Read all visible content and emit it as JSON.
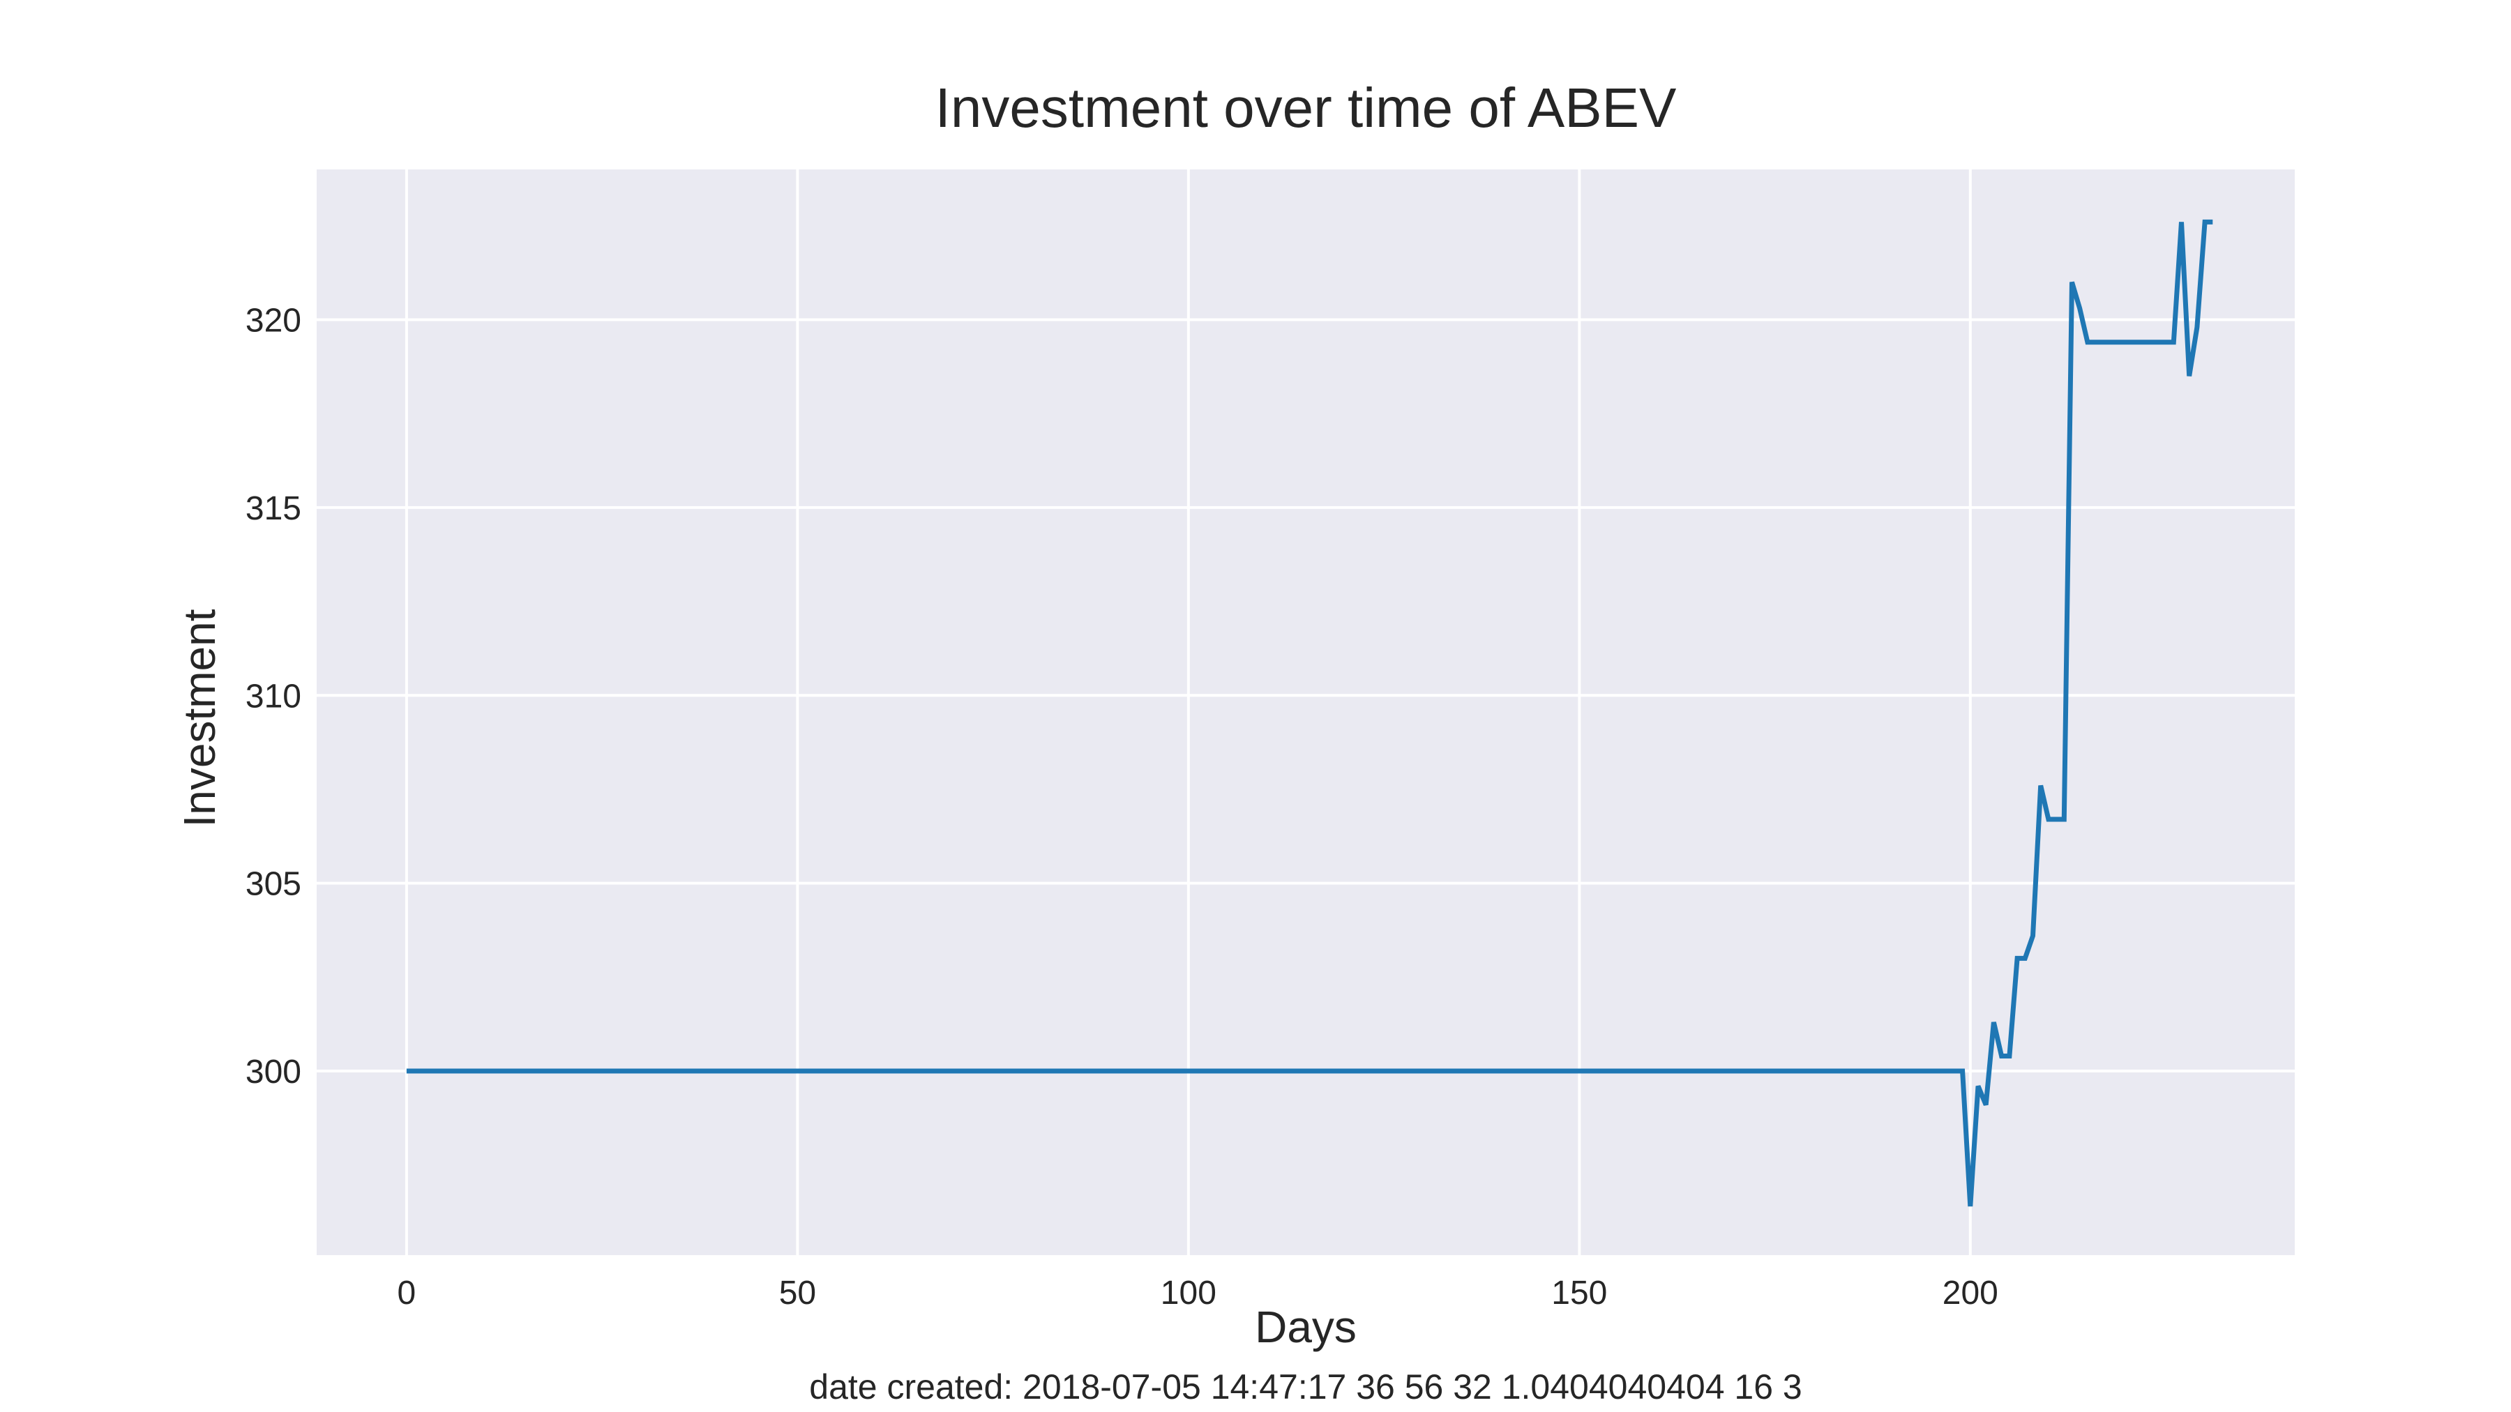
{
  "chart_data": {
    "type": "line",
    "title": "Investment over time of ABEV",
    "xlabel": "Days",
    "ylabel": "Investment",
    "xlim": [
      -11.5,
      241.5
    ],
    "ylim": [
      295.1,
      324.0
    ],
    "xticks": [
      0,
      50,
      100,
      150,
      200
    ],
    "yticks": [
      300,
      305,
      310,
      315,
      320
    ],
    "grid": true,
    "legend": "none",
    "series": [
      {
        "color": "#1f77b4",
        "points": [
          [
            0,
            300.0
          ],
          [
            199,
            300.0
          ],
          [
            200,
            296.4
          ],
          [
            201,
            299.6
          ],
          [
            202,
            299.1
          ],
          [
            203,
            301.3
          ],
          [
            204,
            300.4
          ],
          [
            205,
            300.4
          ],
          [
            206,
            303.0
          ],
          [
            207,
            303.0
          ],
          [
            208,
            303.6
          ],
          [
            209,
            307.6
          ],
          [
            210,
            306.7
          ],
          [
            211,
            306.7
          ],
          [
            212,
            306.7
          ],
          [
            213,
            321.0
          ],
          [
            214,
            320.3
          ],
          [
            215,
            319.4
          ],
          [
            226,
            319.4
          ],
          [
            227,
            322.6
          ],
          [
            228,
            318.5
          ],
          [
            229,
            319.8
          ],
          [
            230,
            322.6
          ],
          [
            231,
            322.6
          ]
        ]
      }
    ]
  },
  "footer": "date created: 2018-07-05 14:47:17 36 56 32 1.0404040404 16 3",
  "colors": {
    "plot_background": "#eaeaf2",
    "grid": "#ffffff",
    "text": "#262626"
  }
}
